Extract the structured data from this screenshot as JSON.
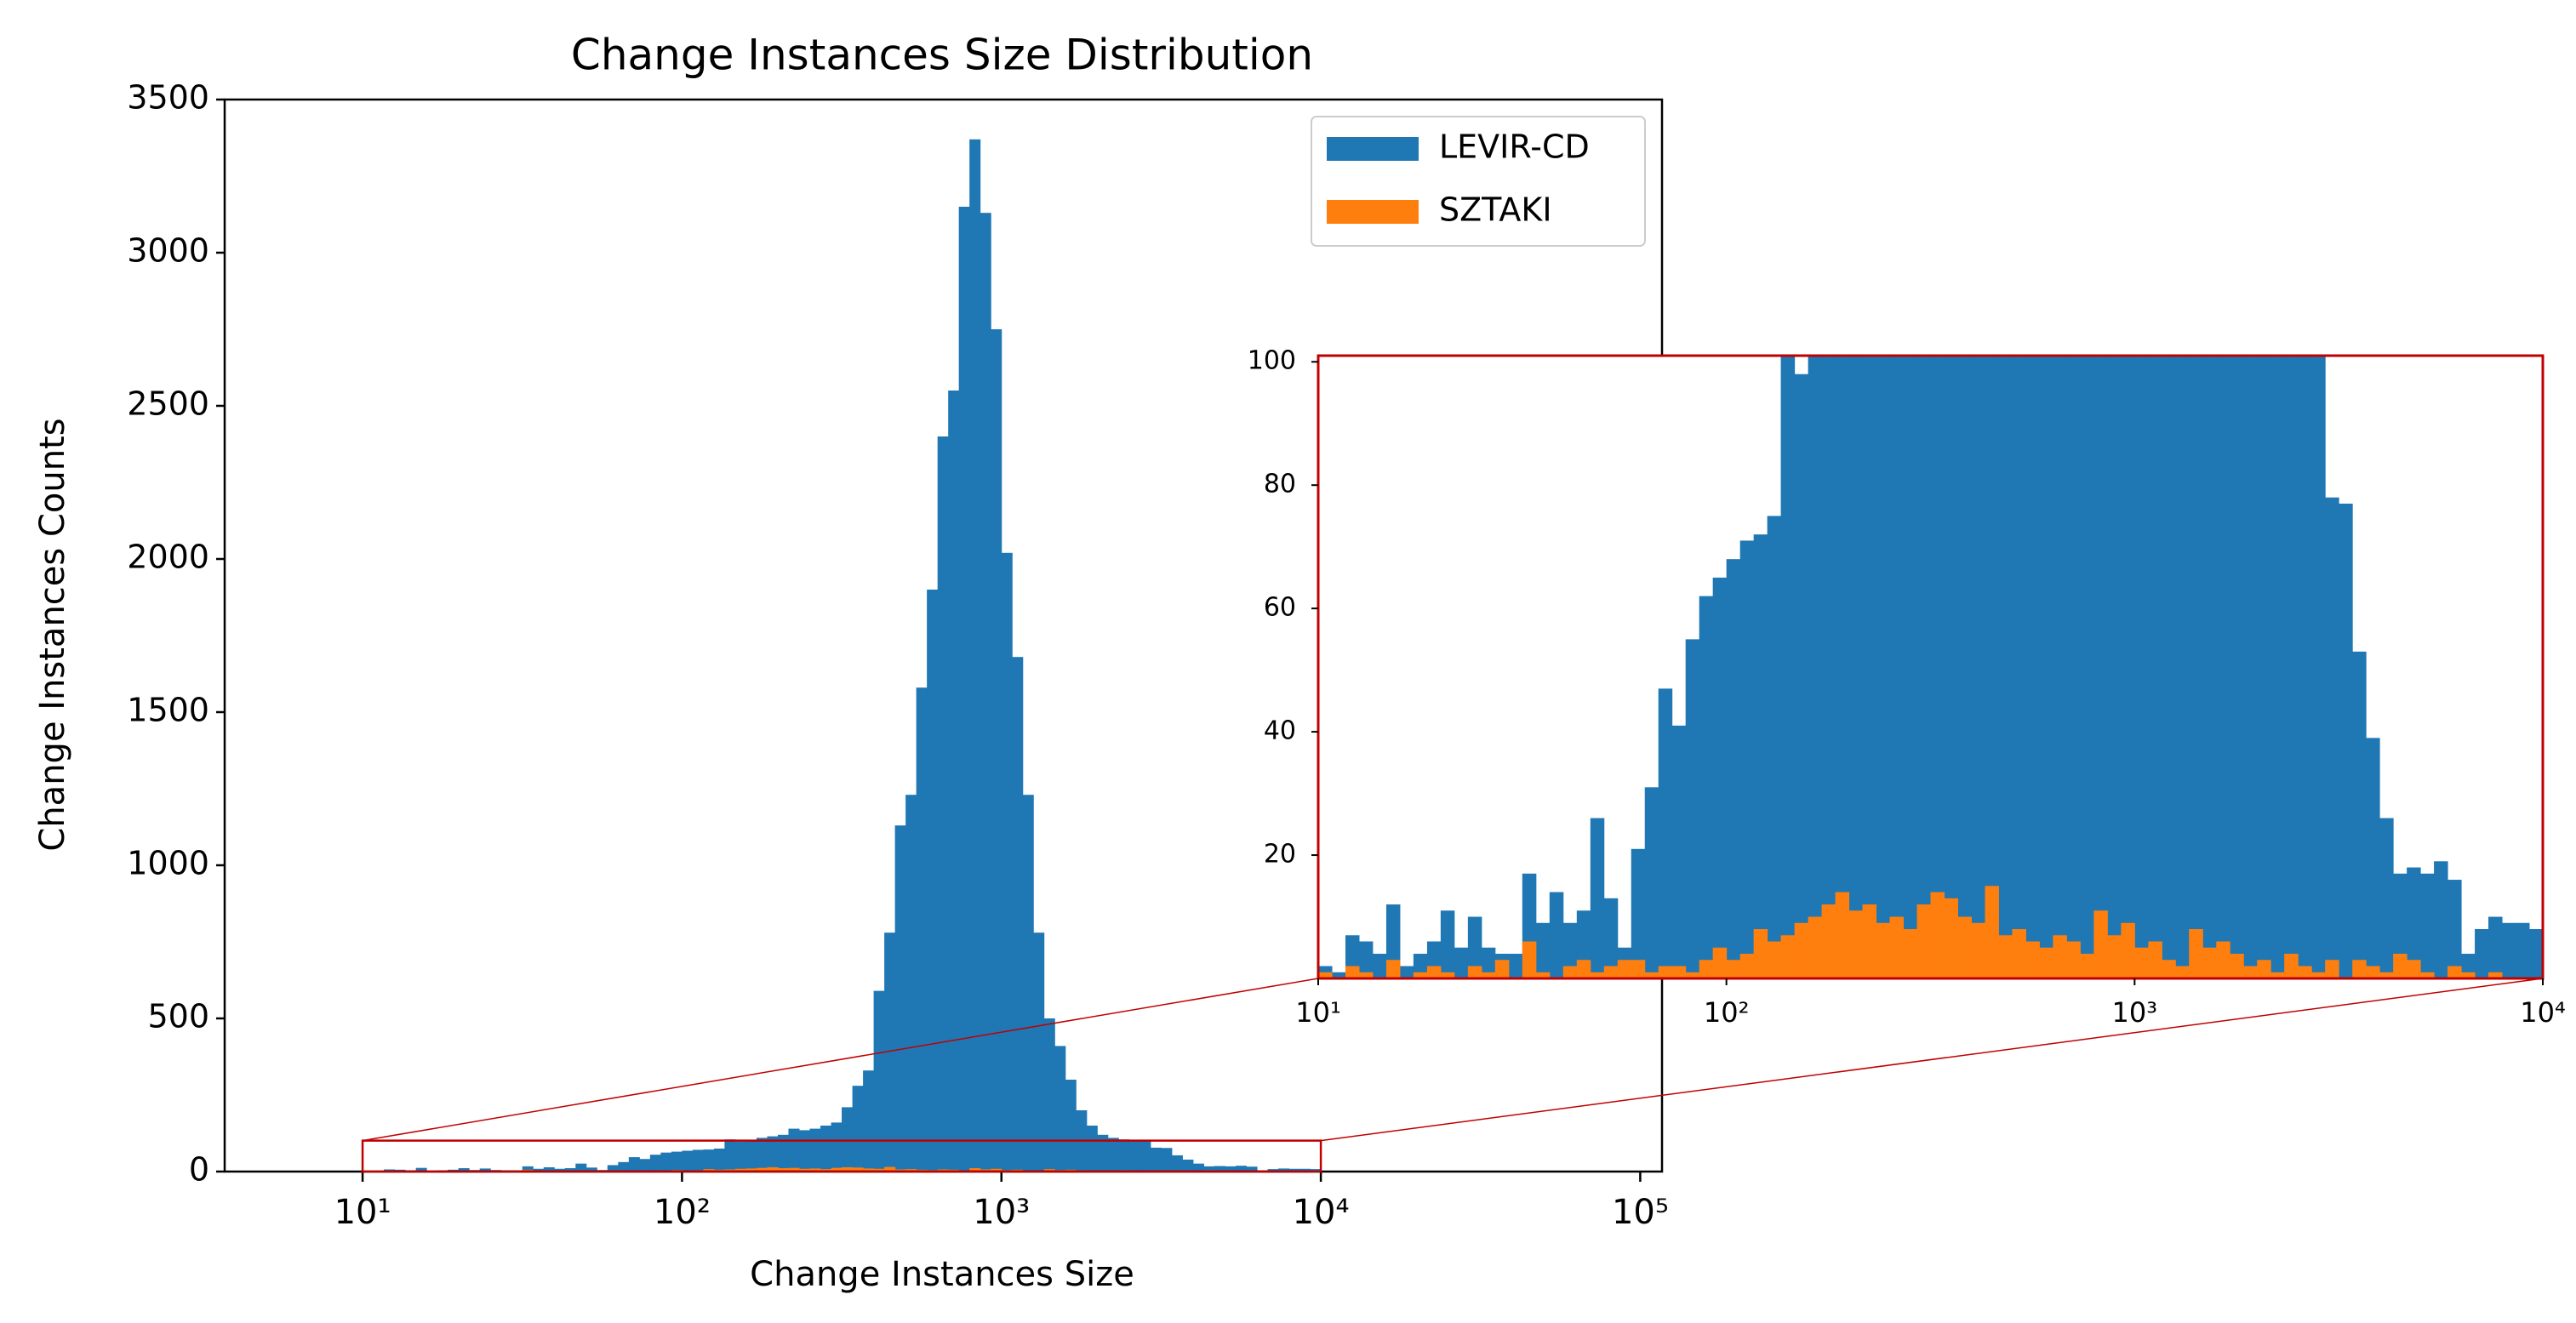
{
  "chart_data": {
    "type": "histogram",
    "title": "Change Instances Size Distribution",
    "x_label": "Change Instances Size",
    "y_label": "Change Instances Counts",
    "log_x": true,
    "legend": "upper right",
    "bins": [
      10,
      10.8,
      11.66,
      12.59,
      13.59,
      14.68,
      15.85,
      17.11,
      18.48,
      19.95,
      21.54,
      23.26,
      25.12,
      27.12,
      29.29,
      31.62,
      34.15,
      36.87,
      39.81,
      42.99,
      46.42,
      50.12,
      54.12,
      58.43,
      63.1,
      68.13,
      73.56,
      79.43,
      85.77,
      92.61,
      100,
      108,
      116.6,
      125.9,
      135.9,
      146.8,
      158.5,
      171.1,
      184.8,
      199.5,
      215.4,
      232.6,
      251.2,
      271.2,
      292.9,
      316.2,
      341.5,
      368.7,
      398.1,
      429.9,
      464.2,
      501.2,
      541.2,
      584.3,
      631,
      681.3,
      735.6,
      794.3,
      857.7,
      926.1,
      1000,
      1080,
      1166,
      1259,
      1359,
      1468,
      1585,
      1711,
      1848,
      1995,
      2154,
      2326,
      2512,
      2712,
      2929,
      3162,
      3415,
      3687,
      3981,
      4299,
      4642,
      5012,
      5412,
      5843,
      6310,
      6813,
      7356,
      7943,
      8577,
      9261,
      10000
    ],
    "series": [
      {
        "name": "LEVIR-CD",
        "color": "#1f77b4",
        "values": [
          2,
          1,
          7,
          6,
          4,
          12,
          2,
          4,
          6,
          11,
          5,
          10,
          5,
          4,
          4,
          17,
          9,
          14,
          9,
          11,
          26,
          13,
          5,
          21,
          31,
          47,
          41,
          55,
          62,
          65,
          68,
          71,
          72,
          75,
          105,
          98,
          101,
          110,
          115,
          120,
          140,
          135,
          140,
          150,
          160,
          210,
          280,
          330,
          590,
          780,
          1130,
          1230,
          1580,
          1900,
          2400,
          2550,
          3150,
          3370,
          3130,
          2750,
          2020,
          1680,
          1230,
          780,
          500,
          410,
          300,
          200,
          150,
          120,
          110,
          105,
          103,
          102,
          78,
          77,
          53,
          39,
          26,
          17,
          18,
          17,
          19,
          16,
          4,
          8,
          10,
          9,
          9,
          8
        ]
      },
      {
        "name": "SZTAKI",
        "color": "#ff7f0e",
        "values": [
          1,
          0,
          2,
          1,
          0,
          3,
          0,
          1,
          2,
          1,
          0,
          2,
          1,
          3,
          0,
          6,
          1,
          0,
          2,
          3,
          1,
          2,
          3,
          3,
          1,
          2,
          2,
          1,
          3,
          5,
          3,
          4,
          8,
          6,
          7,
          9,
          10,
          12,
          14,
          11,
          12,
          9,
          10,
          8,
          12,
          14,
          13,
          10,
          9,
          15,
          7,
          8,
          6,
          5,
          7,
          6,
          4,
          11,
          7,
          9,
          5,
          6,
          3,
          2,
          8,
          5,
          6,
          4,
          2,
          3,
          1,
          4,
          2,
          1,
          3,
          0,
          3,
          2,
          1,
          4,
          3,
          1,
          0,
          2,
          1,
          0,
          1,
          0,
          0,
          0
        ]
      }
    ],
    "xlim": [
      3.7,
      117000
    ],
    "ylim": [
      0,
      3500
    ],
    "xticks": [
      {
        "value": 10,
        "label": "10¹"
      },
      {
        "value": 100,
        "label": "10²"
      },
      {
        "value": 1000,
        "label": "10³"
      },
      {
        "value": 10000,
        "label": "10⁴"
      },
      {
        "value": 100000,
        "label": "10⁵"
      }
    ],
    "yticks": [
      0,
      500,
      1000,
      1500,
      2000,
      2500,
      3000,
      3500
    ],
    "inset": {
      "xlim": [
        10,
        10000
      ],
      "ylim": [
        0,
        101
      ],
      "xticks": [
        {
          "value": 10,
          "label": "10¹"
        },
        {
          "value": 100,
          "label": "10²"
        },
        {
          "value": 1000,
          "label": "10³"
        },
        {
          "value": 10000,
          "label": "10⁴"
        }
      ],
      "yticks": [
        20,
        40,
        60,
        80,
        100
      ],
      "color": "#c00000"
    }
  }
}
